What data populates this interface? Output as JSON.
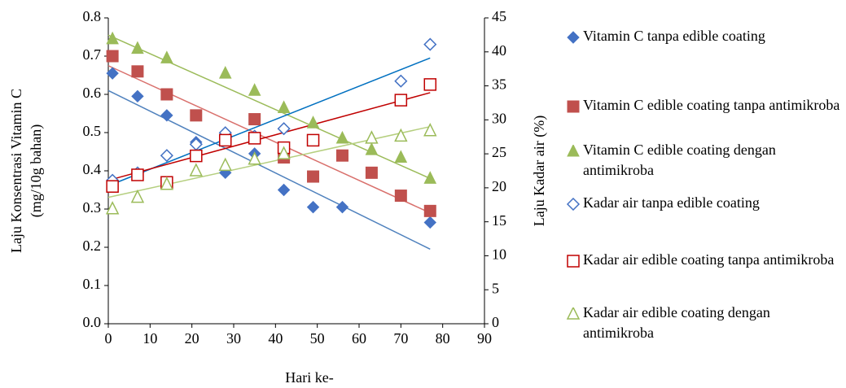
{
  "chart_data": {
    "type": "scatter",
    "x_label": "Hari ke-",
    "y_label": [
      "Laju Konsentrasi Vitamin C",
      "(mg/10g bahan)"
    ],
    "y2_label": "Laju Kadar air (%)",
    "xlim": [
      0,
      90
    ],
    "xticks": [
      0,
      10,
      20,
      30,
      40,
      50,
      60,
      70,
      80,
      90
    ],
    "ylim": [
      0,
      0.8
    ],
    "yticks": [
      {
        "value": 0,
        "label": "0.0"
      },
      0.1,
      0.2,
      0.3,
      0.4,
      0.5,
      0.6,
      0.7,
      0.8
    ],
    "y2lim": [
      0,
      45
    ],
    "y2ticks": [
      0,
      5,
      10,
      15,
      20,
      25,
      30,
      35,
      40,
      45
    ],
    "grid": false,
    "legend": "right",
    "series": [
      {
        "name": "Vitamin C tanpa edible coating",
        "color": "#4472c4",
        "marker": "diamond",
        "filled": true,
        "axis": "y",
        "x": [
          1,
          7,
          14,
          21,
          28,
          35,
          42,
          49,
          56,
          77
        ],
        "values": [
          0.655,
          0.595,
          0.545,
          0.475,
          0.395,
          0.445,
          0.35,
          0.305,
          0.305,
          0.265
        ],
        "trend": {
          "color": "#4f81bd",
          "x": [
            0,
            77
          ],
          "values": [
            0.61,
            0.195
          ]
        }
      },
      {
        "name": "Vitamin C edible coating tanpa antimikroba",
        "color": "#c0504d",
        "marker": "square",
        "filled": true,
        "axis": "y",
        "x": [
          1,
          7,
          14,
          21,
          35,
          42,
          49,
          56,
          63,
          70,
          77
        ],
        "values": [
          0.7,
          0.66,
          0.6,
          0.545,
          0.535,
          0.435,
          0.385,
          0.44,
          0.395,
          0.335,
          0.295
        ],
        "trend": {
          "color": "#d9706c",
          "x": [
            0,
            77
          ],
          "values": [
            0.675,
            0.29
          ]
        }
      },
      {
        "name": "Vitamin C edible coating dengan antimikroba",
        "color": "#9bbb59",
        "marker": "triangle",
        "filled": true,
        "axis": "y",
        "x": [
          1,
          7,
          14,
          28,
          35,
          42,
          49,
          56,
          63,
          70,
          77
        ],
        "values": [
          0.745,
          0.72,
          0.695,
          0.655,
          0.61,
          0.565,
          0.525,
          0.485,
          0.455,
          0.435,
          0.38
        ],
        "trend": {
          "color": "#9bbb59",
          "x": [
            0,
            77
          ],
          "values": [
            0.755,
            0.38
          ]
        }
      },
      {
        "name": "Kadar air tanpa edible coating",
        "color": "#4472c4",
        "marker": "diamond",
        "filled": false,
        "axis": "y2",
        "x": [
          1,
          7,
          14,
          21,
          28,
          35,
          42,
          70,
          77
        ],
        "values": [
          21.1,
          22.2,
          24.75,
          26.4,
          28.1,
          27.6,
          28.7,
          35.7,
          41.1
        ],
        "trend": {
          "color": "#0070c0",
          "x": [
            0,
            77
          ],
          "values": [
            20.3,
            39.1
          ]
        }
      },
      {
        "name": "Kadar air edible coating tanpa antimikroba",
        "color": "#c00000",
        "marker": "square",
        "filled": false,
        "axis": "y2",
        "x": [
          1,
          7,
          14,
          21,
          28,
          35,
          42,
          49,
          70,
          77
        ],
        "values": [
          20.2,
          21.9,
          20.8,
          24.7,
          27,
          27.3,
          25.9,
          27,
          32.9,
          35.2
        ],
        "trend": {
          "color": "#c00000",
          "x": [
            0,
            77
          ],
          "values": [
            21.1,
            34
          ]
        }
      },
      {
        "name": "Kadar air edible coating dengan antimikroba",
        "color": "#9bbb59",
        "marker": "triangle",
        "filled": false,
        "axis": "y2",
        "x": [
          1,
          7,
          14,
          21,
          28,
          35,
          42,
          63,
          70,
          77
        ],
        "values": [
          16.9,
          18.6,
          20.5,
          22.5,
          23.3,
          24.2,
          25,
          27.3,
          27.6,
          28.4
        ],
        "trend": {
          "color": "#b5cf7f",
          "x": [
            0,
            77
          ],
          "values": [
            18.6,
            29
          ]
        }
      }
    ]
  }
}
